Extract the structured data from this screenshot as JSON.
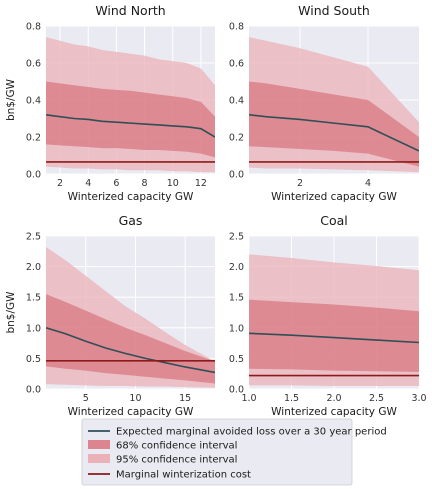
{
  "colors": {
    "panel_bg": "#eaeaf2",
    "grid": "#ffffff",
    "mean_line": "#2f4f57",
    "ci68": "#d9737d",
    "ci95": "#ebb1b8",
    "cost_line": "#8b1a1a"
  },
  "legend": {
    "mean": "Expected marginal avoided loss over a 30 year period",
    "ci68": "68% confidence interval",
    "ci95": "95% confidence interval",
    "cost": "Marginal winterization cost"
  },
  "chart_data": [
    {
      "type": "area",
      "title": "Wind North",
      "xlabel": "Winterized capacity GW",
      "ylabel": "bn$/GW",
      "xlim": [
        1,
        13
      ],
      "ylim": [
        0,
        0.8
      ],
      "xticks": [
        2,
        4,
        6,
        8,
        10,
        12
      ],
      "yticks": [
        0.0,
        0.2,
        0.4,
        0.6,
        0.8
      ],
      "x": [
        1,
        2,
        3,
        4,
        5,
        6,
        7,
        8,
        9,
        10,
        11,
        12,
        13
      ],
      "mean": [
        0.32,
        0.31,
        0.3,
        0.295,
        0.285,
        0.28,
        0.275,
        0.27,
        0.265,
        0.26,
        0.255,
        0.245,
        0.2
      ],
      "ci68_low": [
        0.16,
        0.155,
        0.15,
        0.145,
        0.14,
        0.14,
        0.135,
        0.13,
        0.13,
        0.125,
        0.12,
        0.11,
        0.09
      ],
      "ci68_high": [
        0.5,
        0.49,
        0.48,
        0.47,
        0.46,
        0.455,
        0.45,
        0.44,
        0.43,
        0.42,
        0.41,
        0.39,
        0.31
      ],
      "ci95_low": [
        0.04,
        0.035,
        0.03,
        0.03,
        0.025,
        0.025,
        0.02,
        0.02,
        0.02,
        0.015,
        0.015,
        0.01,
        0.01
      ],
      "ci95_high": [
        0.74,
        0.72,
        0.7,
        0.69,
        0.67,
        0.66,
        0.65,
        0.64,
        0.62,
        0.61,
        0.6,
        0.57,
        0.48
      ],
      "cost": 0.065
    },
    {
      "type": "area",
      "title": "Wind South",
      "xlabel": "Winterized capacity GW",
      "ylabel": "",
      "xlim": [
        0.5,
        5.5
      ],
      "ylim": [
        0,
        0.8
      ],
      "xticks": [
        2,
        4
      ],
      "yticks": [
        0.0,
        0.2,
        0.4,
        0.6,
        0.8
      ],
      "x": [
        0.5,
        1,
        2,
        3,
        4,
        5.5
      ],
      "mean": [
        0.32,
        0.31,
        0.295,
        0.275,
        0.255,
        0.125
      ],
      "ci68_low": [
        0.15,
        0.145,
        0.135,
        0.125,
        0.11,
        0.04
      ],
      "ci68_high": [
        0.5,
        0.49,
        0.46,
        0.43,
        0.4,
        0.2
      ],
      "ci95_low": [
        0.035,
        0.03,
        0.03,
        0.025,
        0.02,
        0.01
      ],
      "ci95_high": [
        0.74,
        0.72,
        0.68,
        0.63,
        0.58,
        0.28
      ],
      "cost": 0.065
    },
    {
      "type": "area",
      "title": "Gas",
      "xlabel": "Winterized capacity GW",
      "ylabel": "bn$/GW",
      "xlim": [
        1,
        18
      ],
      "ylim": [
        0,
        2.5
      ],
      "xticks": [
        5,
        10,
        15
      ],
      "yticks": [
        0.0,
        0.5,
        1.0,
        1.5,
        2.0,
        2.5
      ],
      "x": [
        1,
        3,
        5,
        7,
        9,
        11,
        13,
        15,
        18
      ],
      "mean": [
        1.0,
        0.9,
        0.78,
        0.67,
        0.58,
        0.5,
        0.43,
        0.36,
        0.27
      ],
      "ci68_low": [
        0.37,
        0.33,
        0.3,
        0.26,
        0.23,
        0.2,
        0.17,
        0.14,
        0.09
      ],
      "ci68_high": [
        1.55,
        1.42,
        1.28,
        1.14,
        1.0,
        0.88,
        0.75,
        0.62,
        0.45
      ],
      "ci95_low": [
        0.08,
        0.07,
        0.06,
        0.05,
        0.05,
        0.04,
        0.04,
        0.03,
        0.02
      ],
      "ci95_high": [
        2.32,
        2.1,
        1.85,
        1.6,
        1.35,
        1.15,
        0.93,
        0.72,
        0.45
      ],
      "cost": 0.46
    },
    {
      "type": "area",
      "title": "Coal",
      "xlabel": "Winterized capacity GW",
      "ylabel": "",
      "xlim": [
        1.0,
        3.0
      ],
      "ylim": [
        0,
        2.5
      ],
      "xticks": [
        1.0,
        1.5,
        2.0,
        2.5,
        3.0
      ],
      "yticks": [
        0.0,
        0.5,
        1.0,
        1.5,
        2.0,
        2.5
      ],
      "x": [
        1.0,
        1.5,
        2.0,
        2.5,
        3.0
      ],
      "mean": [
        0.91,
        0.88,
        0.84,
        0.8,
        0.76
      ],
      "ci68_low": [
        0.33,
        0.32,
        0.3,
        0.29,
        0.28
      ],
      "ci68_high": [
        1.46,
        1.42,
        1.38,
        1.33,
        1.27
      ],
      "ci95_low": [
        0.06,
        0.06,
        0.05,
        0.05,
        0.05
      ],
      "ci95_high": [
        2.2,
        2.14,
        2.07,
        2.01,
        1.94
      ],
      "cost": 0.22
    }
  ]
}
